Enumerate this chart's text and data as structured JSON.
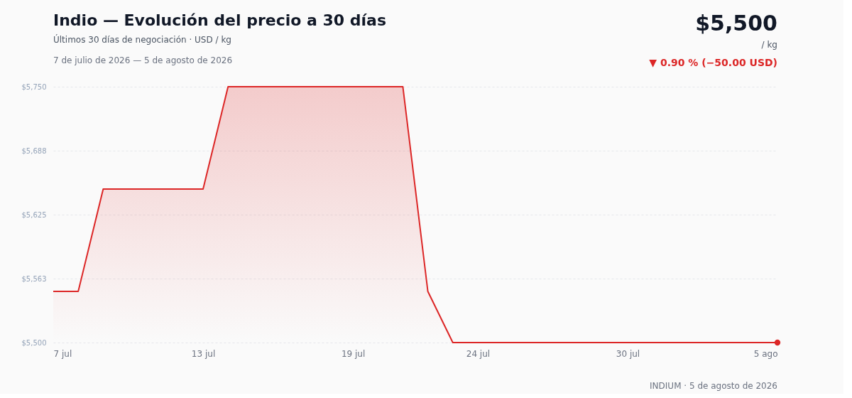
{
  "chart_data": {
    "type": "area",
    "title": "Indio — Evolución del precio a 30 días",
    "subtitle": "Últimos 30 días de negociación · USD / kg",
    "annotations": [
      "$5,500",
      "/ kg",
      "▼ 0.90 % (−50.00 USD)",
      "7 de julio de 2026 — 5 de agosto de 2026",
      "INDIUM · 5 de agosto de 2026"
    ],
    "x": [
      "2026-07-07",
      "2026-07-08",
      "2026-07-09",
      "2026-07-10",
      "2026-07-11",
      "2026-07-12",
      "2026-07-13",
      "2026-07-14",
      "2026-07-15",
      "2026-07-16",
      "2026-07-17",
      "2026-07-18",
      "2026-07-19",
      "2026-07-20",
      "2026-07-21",
      "2026-07-22",
      "2026-07-23",
      "2026-07-24",
      "2026-07-25",
      "2026-07-26",
      "2026-07-27",
      "2026-07-28",
      "2026-07-29",
      "2026-07-30",
      "2026-07-31",
      "2026-08-01",
      "2026-08-02",
      "2026-08-03",
      "2026-08-04",
      "2026-08-05"
    ],
    "series": [
      {
        "color": "#dc2626",
        "values": [
          5550,
          5550,
          5650,
          5650,
          5650,
          5650,
          5650,
          5750,
          5750,
          5750,
          5750,
          5750,
          5750,
          5750,
          5750,
          5550,
          5500,
          5500,
          5500,
          5500,
          5500,
          5500,
          5500,
          5500,
          5500,
          5500,
          5500,
          5500,
          5500,
          5500
        ]
      },
      {
        "type": "scatter",
        "marker": "circle",
        "color": "#dc2626",
        "x": [
          "2026-08-05"
        ],
        "values": [
          5500
        ]
      }
    ],
    "xlim": [
      "2026-07-07",
      "2026-08-05"
    ],
    "xticks": [
      {
        "value": "2026-07-07",
        "label": "7 jul"
      },
      {
        "value": "2026-07-13",
        "label": "13 jul"
      },
      {
        "value": "2026-07-19",
        "label": "19 jul"
      },
      {
        "value": "2026-07-24",
        "label": "24 jul"
      },
      {
        "value": "2026-07-30",
        "label": "30 jul"
      },
      {
        "value": "2026-08-05",
        "label": "5 ago"
      }
    ],
    "ylim": [
      5500,
      5750
    ],
    "yticks": [
      {
        "value": 5500,
        "label": "$5,500"
      },
      {
        "value": 5562.5,
        "label": "$5,563"
      },
      {
        "value": 5625,
        "label": "$5,625"
      },
      {
        "value": 5687.5,
        "label": "$5,688"
      },
      {
        "value": 5750,
        "label": "$5,750"
      }
    ],
    "grid": "y",
    "marker": "none",
    "line_style": "solid"
  }
}
